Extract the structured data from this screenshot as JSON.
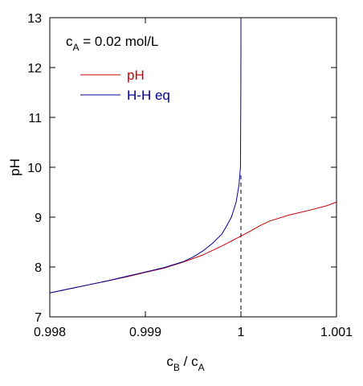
{
  "chart_data": {
    "type": "line",
    "annotation": {
      "main": "c",
      "sub": "A",
      "rest": " = 0.02 mol/L"
    },
    "xlabel": {
      "main": "c",
      "sub": "B",
      "sep": " / ",
      "main2": "c",
      "sub2": "A"
    },
    "ylabel": "pH",
    "xlim": [
      0.998,
      1.001
    ],
    "ylim": [
      7,
      13
    ],
    "xticks": [
      0.998,
      0.999,
      1,
      1.001
    ],
    "xtick_labels": [
      "0.998",
      "0.999",
      "1",
      "1.001"
    ],
    "yticks": [
      7,
      8,
      9,
      10,
      11,
      12,
      13
    ],
    "ytick_labels": [
      "7",
      "8",
      "9",
      "10",
      "11",
      "12",
      "13"
    ],
    "grid": false,
    "legend_position": "top-left",
    "series": [
      {
        "name": "pH",
        "color": "#cc0000",
        "x": [
          0.998,
          0.9982,
          0.9984,
          0.9986,
          0.9988,
          0.999,
          0.9992,
          0.9994,
          0.9996,
          0.9997,
          0.9998,
          0.9999,
          1.0,
          1.0001,
          1.0002,
          1.0003,
          1.0005,
          1.0007,
          1.0009,
          1.001
        ],
        "y": [
          7.48,
          7.56,
          7.64,
          7.72,
          7.8,
          7.89,
          7.98,
          8.1,
          8.24,
          8.33,
          8.42,
          8.52,
          8.62,
          8.72,
          8.83,
          8.92,
          9.04,
          9.13,
          9.23,
          9.3
        ]
      },
      {
        "name": "H-H eq",
        "color": "#000099",
        "x": [
          0.998,
          0.9982,
          0.9984,
          0.9986,
          0.9988,
          0.999,
          0.9992,
          0.9994,
          0.9995,
          0.9996,
          0.9997,
          0.9998,
          0.99985,
          0.9999,
          0.99995,
          0.99998,
          0.999995,
          0.999999,
          1.0,
          1.0
        ],
        "y": [
          7.48,
          7.56,
          7.64,
          7.72,
          7.81,
          7.9,
          7.99,
          8.11,
          8.2,
          8.32,
          8.47,
          8.66,
          8.82,
          9.0,
          9.3,
          9.65,
          10.0,
          11.5,
          12.5,
          13.0
        ]
      }
    ],
    "reference_line": {
      "x": 1,
      "style": "dashed",
      "color": "#000000"
    }
  }
}
